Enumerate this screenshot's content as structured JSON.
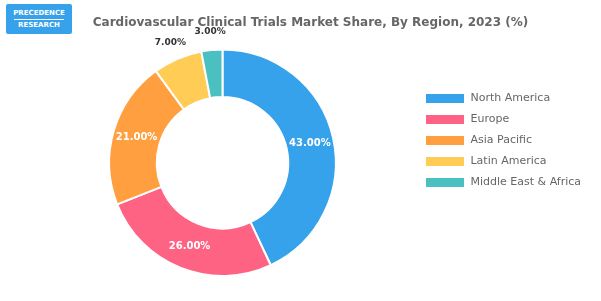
{
  "chart_data": {
    "type": "doughnut",
    "title": "Cardiovascular Clinical Trials Market Share, By Region, 2023 (%)",
    "categories": [
      "North America",
      "Europe",
      "Asia Pacific",
      "Latin America",
      "Middle East & Africa"
    ],
    "values": [
      43.0,
      26.0,
      21.0,
      7.0,
      3.0
    ],
    "value_labels": [
      "43.00%",
      "26.00%",
      "21.00%",
      "7.00%",
      "3.00%"
    ],
    "data_labels": true,
    "legend": "right",
    "annotations": [
      "PRECEDENCE",
      "RESEARCH"
    ]
  }
}
